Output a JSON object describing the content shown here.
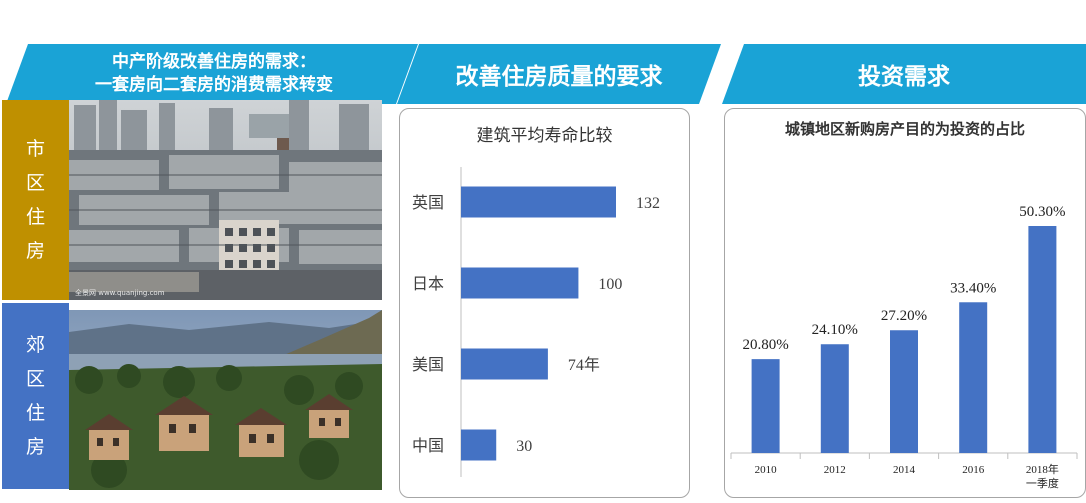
{
  "banners": {
    "left_line1": "中产阶级改善住房的需求：",
    "left_line2": "一套房向二套房的消费需求转变",
    "middle": "改善住房质量的要求",
    "right": "投资需求"
  },
  "side_labels": {
    "urban": [
      "市",
      "区",
      "住",
      "房"
    ],
    "suburban": [
      "郊",
      "区",
      "住",
      "房"
    ]
  },
  "photos": {
    "watermark": "全景网 www.quanjing.com"
  },
  "colors": {
    "banner": "#1aa3d6",
    "urban_label": "#bf9000",
    "suburban_label": "#4472c4",
    "bar": "#4472c4"
  },
  "chart_data": [
    {
      "type": "bar",
      "orientation": "horizontal",
      "title": "建筑平均寿命比较",
      "categories": [
        "英国",
        "日本",
        "美国",
        "中国"
      ],
      "values": [
        132,
        100,
        74,
        30
      ],
      "value_labels": [
        "132",
        "100",
        "74年",
        "30"
      ],
      "xlim": [
        0,
        150
      ],
      "grid": false
    },
    {
      "type": "bar",
      "orientation": "vertical",
      "title": "城镇地区新购房产目的为投资的占比",
      "categories": [
        "2010",
        "2012",
        "2014",
        "2016",
        "2018年一季度"
      ],
      "category_lines": [
        [
          "2010"
        ],
        [
          "2012"
        ],
        [
          "2014"
        ],
        [
          "2016"
        ],
        [
          "2018年",
          "一季度"
        ]
      ],
      "values": [
        20.8,
        24.1,
        27.2,
        33.4,
        50.3
      ],
      "value_labels": [
        "20.80%",
        "24.10%",
        "27.20%",
        "33.40%",
        "50.30%"
      ],
      "ylim": [
        0,
        60
      ],
      "grid": false
    }
  ]
}
